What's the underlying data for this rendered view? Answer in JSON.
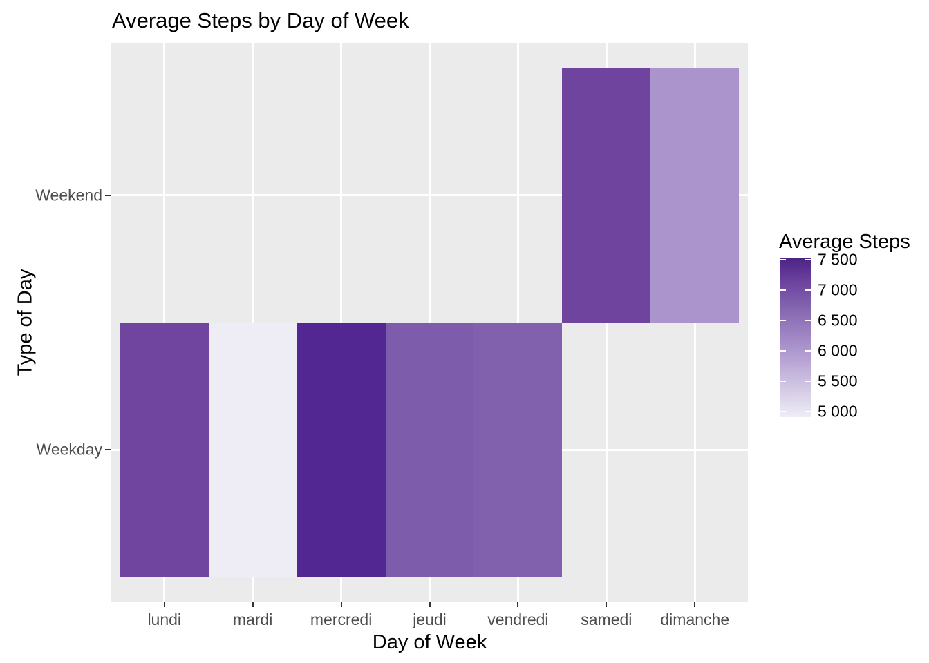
{
  "chart_data": {
    "type": "heatmap",
    "title": "Average Steps by Day of Week",
    "xlabel": "Day of Week",
    "ylabel": "Type of Day",
    "x_categories": [
      "lundi",
      "mardi",
      "mercredi",
      "jeudi",
      "vendredi",
      "samedi",
      "dimanche"
    ],
    "y_categories": [
      "Weekday",
      "Weekend"
    ],
    "legend": {
      "title": "Average Steps",
      "tick_labels": [
        "7 500",
        "7 000",
        "6 500",
        "6 000",
        "5 500",
        "5 000"
      ],
      "tick_values": [
        7500,
        7000,
        6500,
        6000,
        5500,
        5000
      ],
      "scale_limits": [
        4910,
        7535
      ],
      "position": "right"
    },
    "cells": [
      {
        "x": "lundi",
        "y": "Weekday",
        "value": 7100,
        "color": "#6f459f"
      },
      {
        "x": "mardi",
        "y": "Weekday",
        "value": 4920,
        "color": "#eeedf5"
      },
      {
        "x": "mercredi",
        "y": "Weekday",
        "value": 7530,
        "color": "#522792"
      },
      {
        "x": "jeudi",
        "y": "Weekday",
        "value": 6830,
        "color": "#7d5cab"
      },
      {
        "x": "vendredi",
        "y": "Weekday",
        "value": 6760,
        "color": "#8161ad"
      },
      {
        "x": "samedi",
        "y": "Weekend",
        "value": 7100,
        "color": "#6e449e"
      },
      {
        "x": "dimanche",
        "y": "Weekend",
        "value": 6060,
        "color": "#ab93cc"
      }
    ],
    "gradient_stops": [
      {
        "value": 7535,
        "color": "#4b2385"
      },
      {
        "value": 7100,
        "color": "#6f459f"
      },
      {
        "value": 6830,
        "color": "#7d5cab"
      },
      {
        "value": 6760,
        "color": "#8161ad"
      },
      {
        "value": 6060,
        "color": "#ab93cc"
      },
      {
        "value": 4920,
        "color": "#eeedf5"
      },
      {
        "value": 4910,
        "color": "#f0eef6"
      }
    ],
    "grid": "major-only",
    "colors": {
      "panel_bg": "#ebebeb",
      "gridline": "#ffffff",
      "tick": "#333333",
      "axis_text": "#4d4d4d",
      "text": "#000000",
      "background": "#ffffff"
    }
  }
}
